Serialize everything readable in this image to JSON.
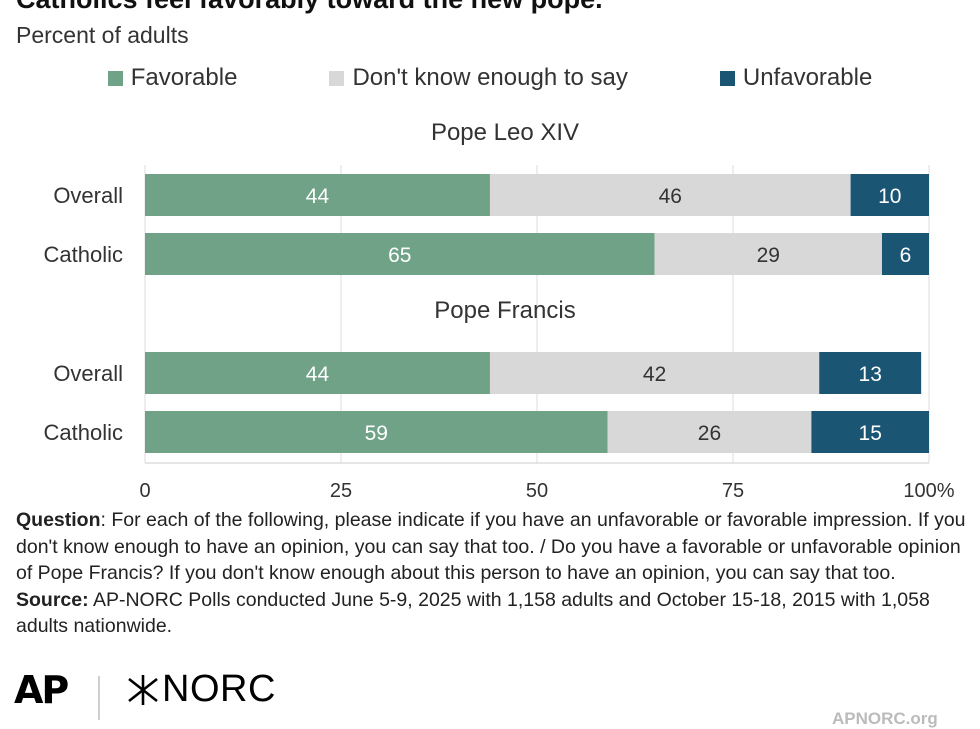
{
  "header": {
    "title": "Catholics feel favorably toward the new pope.",
    "subtitle": "Percent of adults"
  },
  "legend": [
    {
      "label": "Favorable",
      "color": "#6fa287"
    },
    {
      "label": "Don't know enough to say",
      "color": "#d8d8d8"
    },
    {
      "label": "Unfavorable",
      "color": "#1a5574"
    }
  ],
  "chart_data": {
    "type": "bar",
    "orientation": "horizontal",
    "stacked": true,
    "xlim": [
      0,
      100
    ],
    "x_ticks": [
      "0",
      "25",
      "50",
      "75",
      "100%"
    ],
    "grid": true,
    "legend_placement": "top",
    "groups": [
      {
        "title": "Pope Leo XIV",
        "rows": [
          {
            "label": "Overall",
            "values": [
              44,
              46,
              10
            ]
          },
          {
            "label": "Catholic",
            "values": [
              65,
              29,
              6
            ]
          }
        ]
      },
      {
        "title": "Pope Francis",
        "rows": [
          {
            "label": "Overall",
            "values": [
              44,
              42,
              13
            ]
          },
          {
            "label": "Catholic",
            "values": [
              59,
              26,
              15
            ]
          }
        ]
      }
    ],
    "series": [
      "Favorable",
      "Don't know enough to say",
      "Unfavorable"
    ],
    "colors": [
      "#6fa287",
      "#d8d8d8",
      "#1a5574"
    ],
    "label_colors": [
      "#ffffff",
      "#333333",
      "#ffffff"
    ]
  },
  "notes": {
    "question_label": "Question",
    "question_text": ": For each of the following, please indicate if you have an unfavorable or favorable impression. If you don't know enough to have an opinion, you can say that too. / Do you have a favorable or unfavorable opinion of Pope Francis? If you don't know enough about this person to have an opinion, you can say that too.",
    "source_label": "Source:",
    "source_text": " AP-NORC Polls conducted June 5-9, 2025 with 1,158 adults and October 15-18, 2015 with 1,058 adults nationwide."
  },
  "footer": {
    "logo_ap": "AP",
    "logo_norc": "NORC",
    "site": "APNORC.org"
  }
}
